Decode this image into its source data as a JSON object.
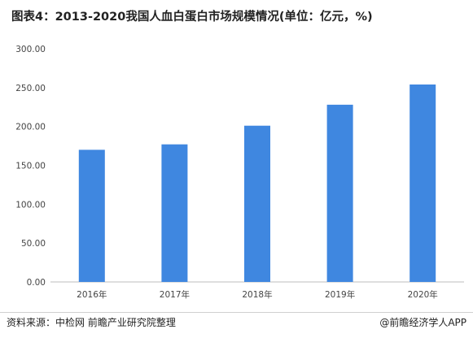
{
  "title": "图表4：2013-2020我国人血白蛋白市场规模情况(单位：亿元，%)",
  "source": "资料来源：中检网 前瞻产业研究院整理",
  "brand": "@前瞻经济学人APP",
  "chart_data": {
    "type": "bar",
    "categories": [
      "2016年",
      "2017年",
      "2018年",
      "2019年",
      "2020年"
    ],
    "values": [
      170,
      177,
      201,
      228,
      254
    ],
    "ylim": [
      0,
      300
    ],
    "yticks": [
      "0.00",
      "50.00",
      "100.00",
      "150.00",
      "200.00",
      "250.00",
      "300.00"
    ],
    "bar_color": "#3f87e0",
    "grid": false
  }
}
